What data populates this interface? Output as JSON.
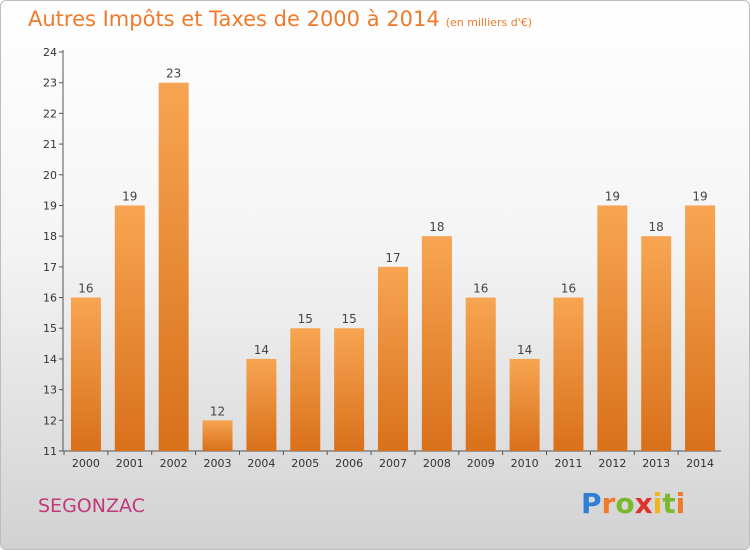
{
  "chart_data": {
    "type": "bar",
    "title": "Autres Impôts et Taxes de 2000 à 2014",
    "subtitle": "(en milliers d'€)",
    "categories": [
      "2000",
      "2001",
      "2002",
      "2003",
      "2004",
      "2005",
      "2006",
      "2007",
      "2008",
      "2009",
      "2010",
      "2011",
      "2012",
      "2013",
      "2014"
    ],
    "values": [
      16,
      19,
      23,
      12,
      14,
      15,
      15,
      17,
      18,
      16,
      14,
      16,
      19,
      18,
      19
    ],
    "ylim": [
      11,
      24
    ],
    "yticks": [
      11,
      12,
      13,
      14,
      15,
      16,
      17,
      18,
      19,
      20,
      21,
      22,
      23,
      24
    ],
    "grid": false,
    "bar_color": "#f0922f"
  },
  "footer": {
    "city": "SEGONZAC",
    "logo": "Proxiti"
  }
}
